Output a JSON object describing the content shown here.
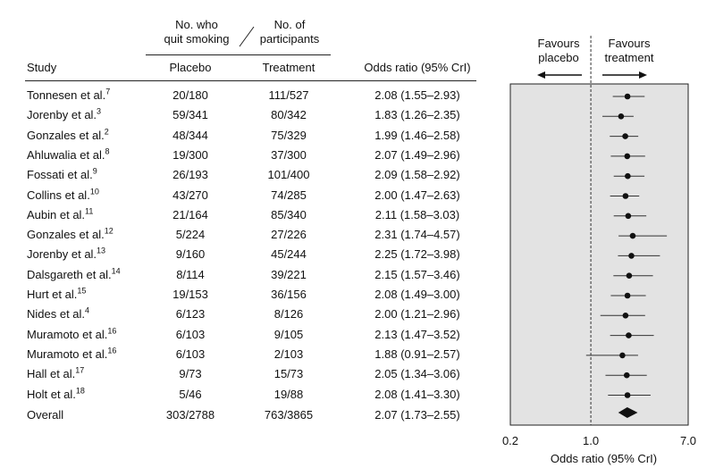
{
  "header": {
    "quit_label": "No. who\nquit smoking",
    "participants_label": "No. of\nparticipants",
    "study": "Study",
    "placebo": "Placebo",
    "treatment": "Treatment",
    "odds_ratio": "Odds ratio (95% CrI)",
    "favours_placebo": "Favours\nplacebo",
    "favours_treatment": "Favours\ntreatment"
  },
  "rows": [
    {
      "study": "Tonnesen et al.",
      "ref": "7",
      "placebo": "20/180",
      "treatment": "111/527",
      "or_text": "2.08 (1.55–2.93)"
    },
    {
      "study": "Jorenby et al.",
      "ref": "3",
      "placebo": "59/341",
      "treatment": "80/342",
      "or_text": "1.83 (1.26–2.35)"
    },
    {
      "study": "Gonzales et al.",
      "ref": "2",
      "placebo": "48/344",
      "treatment": "75/329",
      "or_text": "1.99 (1.46–2.58)"
    },
    {
      "study": "Ahluwalia et al.",
      "ref": "8",
      "placebo": "19/300",
      "treatment": "37/300",
      "or_text": "2.07 (1.49–2.96)"
    },
    {
      "study": "Fossati et al.",
      "ref": "9",
      "placebo": "26/193",
      "treatment": "101/400",
      "or_text": "2.09 (1.58–2.92)"
    },
    {
      "study": "Collins et al.",
      "ref": "10",
      "placebo": "43/270",
      "treatment": "74/285",
      "or_text": "2.00 (1.47–2.63)"
    },
    {
      "study": "Aubin et al.",
      "ref": "11",
      "placebo": "21/164",
      "treatment": "85/340",
      "or_text": "2.11 (1.58–3.03)"
    },
    {
      "study": "Gonzales et al.",
      "ref": "12",
      "placebo": "5/224",
      "treatment": "27/226",
      "or_text": "2.31 (1.74–4.57)"
    },
    {
      "study": "Jorenby et al.",
      "ref": "13",
      "placebo": "9/160",
      "treatment": "45/244",
      "or_text": "2.25 (1.72–3.98)"
    },
    {
      "study": "Dalsgareth et al.",
      "ref": "14",
      "placebo": "8/114",
      "treatment": "39/221",
      "or_text": "2.15 (1.57–3.46)"
    },
    {
      "study": "Hurt et al.",
      "ref": "15",
      "placebo": "19/153",
      "treatment": "36/156",
      "or_text": "2.08 (1.49–3.00)"
    },
    {
      "study": "Nides et al.",
      "ref": "4",
      "placebo": "6/123",
      "treatment": "8/126",
      "or_text": "2.00 (1.21–2.96)"
    },
    {
      "study": "Muramoto et al.",
      "ref": "16",
      "placebo": "6/103",
      "treatment": "9/105",
      "or_text": "2.13 (1.47–3.52)"
    },
    {
      "study": "Muramoto et al.",
      "ref": "16",
      "placebo": "6/103",
      "treatment": "2/103",
      "or_text": "1.88 (0.91–2.57)"
    },
    {
      "study": "Hall et al.",
      "ref": "17",
      "placebo": "9/73",
      "treatment": "15/73",
      "or_text": "2.05 (1.34–3.06)"
    },
    {
      "study": "Holt et al.",
      "ref": "18",
      "placebo": "5/46",
      "treatment": "19/88",
      "or_text": "2.08 (1.41–3.30)"
    }
  ],
  "overall": {
    "study": "Overall",
    "placebo": "303/2788",
    "treatment": "763/3865",
    "or_text": "2.07 (1.73–2.55)"
  },
  "chart_data": {
    "type": "forest",
    "xlabel": "Odds ratio (95% CrI)",
    "x_scale": "log",
    "xlim": [
      0.2,
      7.0
    ],
    "x_ticks": [
      "0.2",
      "1.0",
      "7.0"
    ],
    "reference_line": 1.0,
    "studies": [
      {
        "or": 2.08,
        "lo": 1.55,
        "hi": 2.93
      },
      {
        "or": 1.83,
        "lo": 1.26,
        "hi": 2.35
      },
      {
        "or": 1.99,
        "lo": 1.46,
        "hi": 2.58
      },
      {
        "or": 2.07,
        "lo": 1.49,
        "hi": 2.96
      },
      {
        "or": 2.09,
        "lo": 1.58,
        "hi": 2.92
      },
      {
        "or": 2.0,
        "lo": 1.47,
        "hi": 2.63
      },
      {
        "or": 2.11,
        "lo": 1.58,
        "hi": 3.03
      },
      {
        "or": 2.31,
        "lo": 1.74,
        "hi": 4.57
      },
      {
        "or": 2.25,
        "lo": 1.72,
        "hi": 3.98
      },
      {
        "or": 2.15,
        "lo": 1.57,
        "hi": 3.46
      },
      {
        "or": 2.08,
        "lo": 1.49,
        "hi": 3.0
      },
      {
        "or": 2.0,
        "lo": 1.21,
        "hi": 2.96
      },
      {
        "or": 2.13,
        "lo": 1.47,
        "hi": 3.52
      },
      {
        "or": 1.88,
        "lo": 0.91,
        "hi": 2.57
      },
      {
        "or": 2.05,
        "lo": 1.34,
        "hi": 3.06
      },
      {
        "or": 2.08,
        "lo": 1.41,
        "hi": 3.3
      }
    ],
    "overall": {
      "or": 2.07,
      "lo": 1.73,
      "hi": 2.55
    },
    "colors": {
      "panel": "#e3e3e3",
      "marker": "#111111",
      "ci": "#333333"
    }
  }
}
